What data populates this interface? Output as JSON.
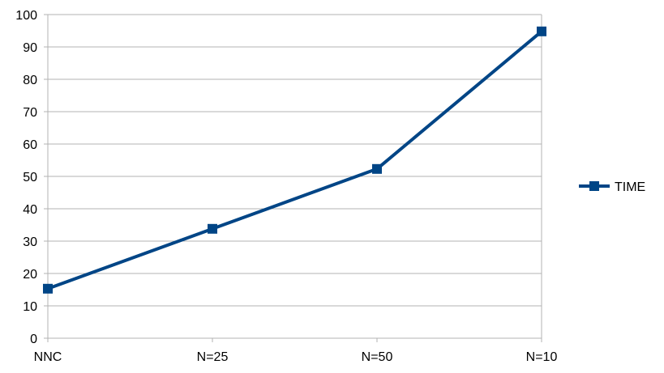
{
  "chart_data": {
    "type": "line",
    "title": "",
    "xlabel": "",
    "ylabel": "",
    "categories": [
      "NNC",
      "N=25",
      "N=50",
      "N=10"
    ],
    "series": [
      {
        "name": "TIME",
        "values": [
          15.3,
          33.8,
          52.3,
          94.8
        ],
        "color": "#004586",
        "marker": "square"
      }
    ],
    "ylim": [
      0,
      100
    ],
    "yticks": [
      0,
      10,
      20,
      30,
      40,
      50,
      60,
      70,
      80,
      90,
      100
    ],
    "grid": true,
    "legend": "right"
  }
}
